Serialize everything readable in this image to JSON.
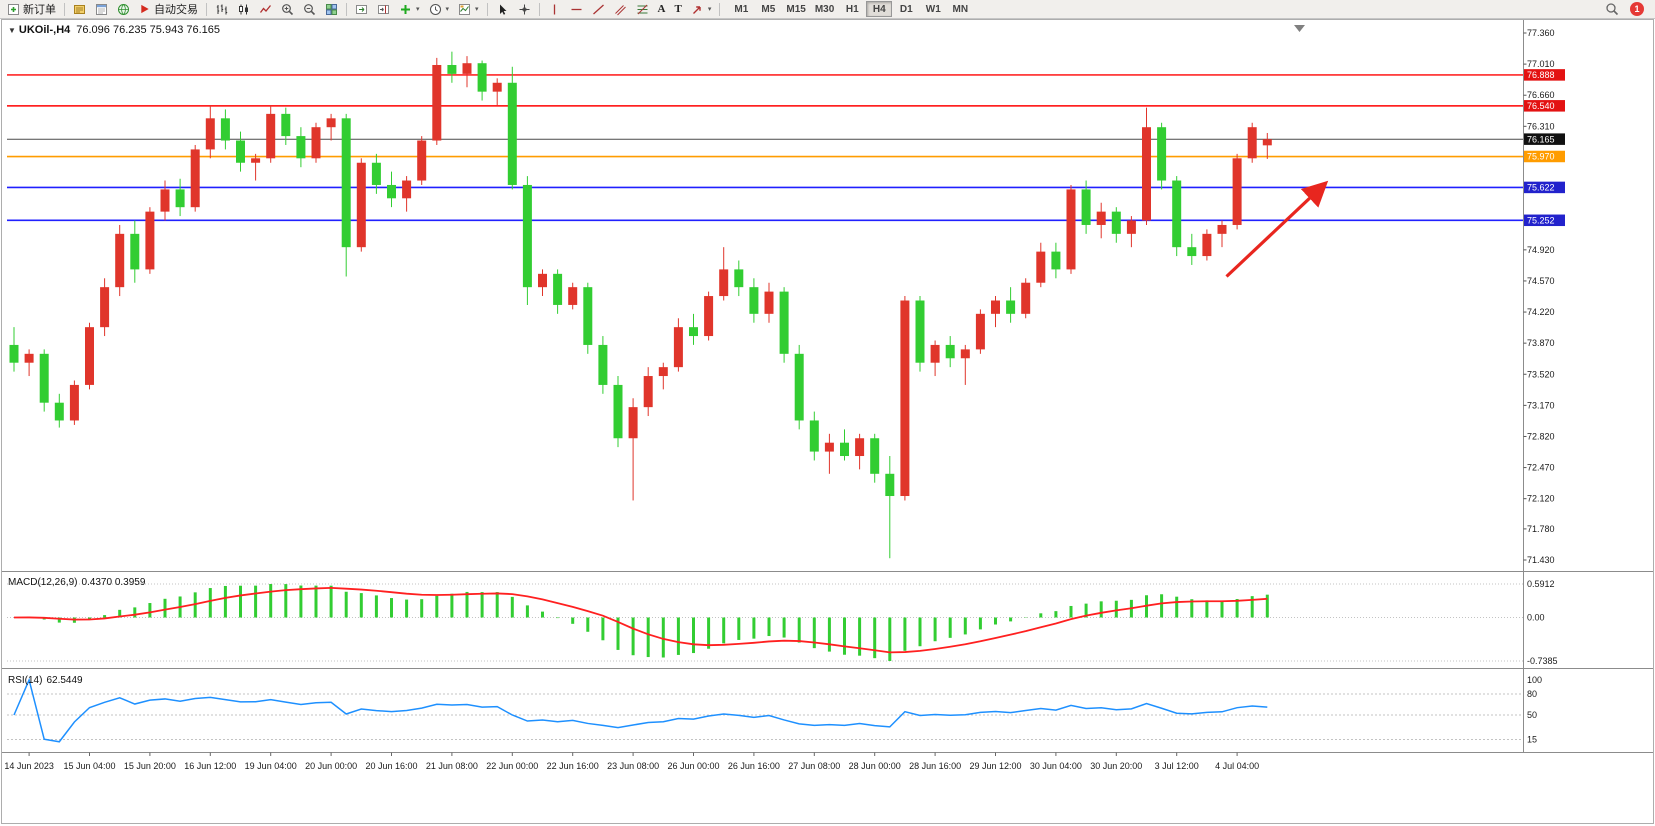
{
  "icons": {
    "title_marker": "▼",
    "caret": "▾",
    "text_tool": "A",
    "label_tool": "T"
  },
  "toolbar": {
    "new_order_label": "新订单",
    "auto_trading_label": "自动交易",
    "timeframes": [
      "M1",
      "M5",
      "M15",
      "M30",
      "H1",
      "H4",
      "D1",
      "W1",
      "MN"
    ],
    "active_timeframe": "H4",
    "notification_badge": "1"
  },
  "chart": {
    "symbol_title": "UKOil-,H4",
    "ohlc": "76.096 76.235 75.943 76.165",
    "price_axis_ticks": [
      "77.360",
      "77.010",
      "76.660",
      "76.310",
      "74.920",
      "74.570",
      "74.220",
      "73.870",
      "73.520",
      "73.170",
      "72.820",
      "72.470",
      "72.120",
      "71.780",
      "71.430"
    ],
    "price_badges": [
      {
        "value": "76.888",
        "price": 76.888,
        "color": "#e31212"
      },
      {
        "value": "76.540",
        "price": 76.54,
        "color": "#e31212"
      },
      {
        "value": "76.165",
        "price": 76.165,
        "color": "#111111"
      },
      {
        "value": "75.970",
        "price": 75.97,
        "color": "#ff9c00"
      },
      {
        "value": "75.622",
        "price": 75.622,
        "color": "#2222cc"
      },
      {
        "value": "75.252",
        "price": 75.252,
        "color": "#2222cc"
      }
    ],
    "hlines": [
      {
        "price": 76.888,
        "color": "#ff0000",
        "width": 1.4
      },
      {
        "price": 76.54,
        "color": "#ff0000",
        "width": 1.4
      },
      {
        "price": 75.97,
        "color": "#ff9c00",
        "width": 1.6
      },
      {
        "price": 75.622,
        "color": "#2020ff",
        "width": 1.6
      },
      {
        "price": 75.252,
        "color": "#2020ff",
        "width": 1.6
      }
    ],
    "bid_line": {
      "price": 76.165,
      "color": "#4a4a4a"
    },
    "arrow": {
      "x1_bar": 80.3,
      "y1_price": 74.62,
      "x2_bar": 86.8,
      "y2_price": 75.66,
      "color": "#e8261f"
    },
    "macd": {
      "label": "MACD(12,26,9)",
      "values": "0.4370 0.3959",
      "axis_labels": [
        "0.5912",
        "0.00",
        "-0.7385"
      ],
      "hist_color": "#32cd32",
      "signal_color": "#ff2020"
    },
    "rsi": {
      "label": "RSI(14)",
      "value": "62.5449",
      "axis_labels": [
        {
          "label": "100",
          "value": 100
        },
        {
          "label": "80",
          "value": 80
        },
        {
          "label": "50",
          "value": 50
        },
        {
          "label": "15",
          "value": 15
        }
      ],
      "levels": [
        80,
        50,
        15
      ],
      "line_color": "#1e90ff"
    },
    "time_axis": [
      {
        "bar": 1,
        "label": "14 Jun 2023"
      },
      {
        "bar": 5,
        "label": "15 Jun 04:00"
      },
      {
        "bar": 9,
        "label": "15 Jun 20:00"
      },
      {
        "bar": 13,
        "label": "16 Jun 12:00"
      },
      {
        "bar": 17,
        "label": "19 Jun 04:00"
      },
      {
        "bar": 21,
        "label": "20 Jun 00:00"
      },
      {
        "bar": 25,
        "label": "20 Jun 16:00"
      },
      {
        "bar": 29,
        "label": "21 Jun 08:00"
      },
      {
        "bar": 33,
        "label": "22 Jun 00:00"
      },
      {
        "bar": 37,
        "label": "22 Jun 16:00"
      },
      {
        "bar": 41,
        "label": "23 Jun 08:00"
      },
      {
        "bar": 45,
        "label": "26 Jun 00:00"
      },
      {
        "bar": 49,
        "label": "26 Jun 16:00"
      },
      {
        "bar": 53,
        "label": "27 Jun 08:00"
      },
      {
        "bar": 57,
        "label": "28 Jun 00:00"
      },
      {
        "bar": 61,
        "label": "28 Jun 16:00"
      },
      {
        "bar": 65,
        "label": "29 Jun 12:00"
      },
      {
        "bar": 69,
        "label": "30 Jun 04:00"
      },
      {
        "bar": 73,
        "label": "30 Jun 20:00"
      },
      {
        "bar": 77,
        "label": "3 Jul 12:00"
      },
      {
        "bar": 81,
        "label": "4 Jul 04:00"
      }
    ]
  },
  "chart_data": {
    "type": "candlestick",
    "symbol": "UKOil-",
    "timeframe": "H4",
    "title": "UKOil-,H4 76.096 76.235 75.943 76.165",
    "current_bar": {
      "open": 76.096,
      "high": 76.235,
      "low": 75.943,
      "close": 76.165
    },
    "up_color": "#e0352b",
    "down_color": "#32cd32",
    "price_range": [
      71.43,
      77.36
    ],
    "indicators": [
      {
        "name": "MACD",
        "params": [
          12,
          26,
          9
        ],
        "current_values": [
          0.437,
          0.3959
        ]
      },
      {
        "name": "RSI",
        "params": [
          14
        ],
        "current_value": 62.5449
      }
    ],
    "candles": [
      [
        73.85,
        74.05,
        73.55,
        73.65
      ],
      [
        73.65,
        73.8,
        73.5,
        73.75
      ],
      [
        73.75,
        73.8,
        73.1,
        73.2
      ],
      [
        73.2,
        73.3,
        72.92,
        73.0
      ],
      [
        73.0,
        73.45,
        72.95,
        73.4
      ],
      [
        73.4,
        74.1,
        73.35,
        74.05
      ],
      [
        74.05,
        74.6,
        73.95,
        74.5
      ],
      [
        74.5,
        75.2,
        74.4,
        75.1
      ],
      [
        75.1,
        75.25,
        74.55,
        74.7
      ],
      [
        74.7,
        75.4,
        74.65,
        75.35
      ],
      [
        75.35,
        75.7,
        75.25,
        75.6
      ],
      [
        75.6,
        75.72,
        75.3,
        75.4
      ],
      [
        75.4,
        76.1,
        75.35,
        76.05
      ],
      [
        76.05,
        76.55,
        75.95,
        76.4
      ],
      [
        76.4,
        76.5,
        76.05,
        76.15
      ],
      [
        76.15,
        76.25,
        75.8,
        75.9
      ],
      [
        75.9,
        76.0,
        75.7,
        75.95
      ],
      [
        75.95,
        76.55,
        75.9,
        76.45
      ],
      [
        76.45,
        76.52,
        76.1,
        76.2
      ],
      [
        76.2,
        76.3,
        75.85,
        75.95
      ],
      [
        75.95,
        76.35,
        75.9,
        76.3
      ],
      [
        76.3,
        76.45,
        76.15,
        76.4
      ],
      [
        76.4,
        76.45,
        74.62,
        74.95
      ],
      [
        74.95,
        75.95,
        74.9,
        75.9
      ],
      [
        75.9,
        76.0,
        75.55,
        75.65
      ],
      [
        75.65,
        75.8,
        75.4,
        75.5
      ],
      [
        75.5,
        75.75,
        75.35,
        75.7
      ],
      [
        75.7,
        76.2,
        75.65,
        76.15
      ],
      [
        76.15,
        77.08,
        76.1,
        77.0
      ],
      [
        77.0,
        77.15,
        76.8,
        76.9
      ],
      [
        76.9,
        77.1,
        76.75,
        77.02
      ],
      [
        77.02,
        77.05,
        76.6,
        76.7
      ],
      [
        76.7,
        76.85,
        76.55,
        76.8
      ],
      [
        76.8,
        76.98,
        75.6,
        75.65
      ],
      [
        75.65,
        75.75,
        74.3,
        74.5
      ],
      [
        74.5,
        74.7,
        74.4,
        74.65
      ],
      [
        74.65,
        74.7,
        74.2,
        74.3
      ],
      [
        74.3,
        74.55,
        74.25,
        74.5
      ],
      [
        74.5,
        74.55,
        73.75,
        73.85
      ],
      [
        73.85,
        73.95,
        73.3,
        73.4
      ],
      [
        73.4,
        73.5,
        72.7,
        72.8
      ],
      [
        72.8,
        73.25,
        72.1,
        73.15
      ],
      [
        73.15,
        73.6,
        73.05,
        73.5
      ],
      [
        73.5,
        73.65,
        73.35,
        73.6
      ],
      [
        73.6,
        74.15,
        73.55,
        74.05
      ],
      [
        74.05,
        74.2,
        73.85,
        73.95
      ],
      [
        73.95,
        74.45,
        73.9,
        74.4
      ],
      [
        74.4,
        74.95,
        74.35,
        74.7
      ],
      [
        74.7,
        74.8,
        74.4,
        74.5
      ],
      [
        74.5,
        74.6,
        74.1,
        74.2
      ],
      [
        74.2,
        74.55,
        74.1,
        74.45
      ],
      [
        74.45,
        74.5,
        73.65,
        73.75
      ],
      [
        73.75,
        73.85,
        72.9,
        73.0
      ],
      [
        73.0,
        73.1,
        72.55,
        72.65
      ],
      [
        72.65,
        72.85,
        72.4,
        72.75
      ],
      [
        72.75,
        72.9,
        72.55,
        72.6
      ],
      [
        72.6,
        72.85,
        72.45,
        72.8
      ],
      [
        72.8,
        72.85,
        72.3,
        72.4
      ],
      [
        72.4,
        72.6,
        71.45,
        72.15
      ],
      [
        72.15,
        74.4,
        72.1,
        74.35
      ],
      [
        74.35,
        74.4,
        73.55,
        73.65
      ],
      [
        73.65,
        73.9,
        73.5,
        73.85
      ],
      [
        73.85,
        73.95,
        73.6,
        73.7
      ],
      [
        73.7,
        73.85,
        73.4,
        73.8
      ],
      [
        73.8,
        74.25,
        73.75,
        74.2
      ],
      [
        74.2,
        74.4,
        74.05,
        74.35
      ],
      [
        74.35,
        74.5,
        74.1,
        74.2
      ],
      [
        74.2,
        74.6,
        74.15,
        74.55
      ],
      [
        74.55,
        75.0,
        74.5,
        74.9
      ],
      [
        74.9,
        75.0,
        74.6,
        74.7
      ],
      [
        74.7,
        75.65,
        74.65,
        75.6
      ],
      [
        75.6,
        75.7,
        75.1,
        75.2
      ],
      [
        75.2,
        75.45,
        75.05,
        75.35
      ],
      [
        75.35,
        75.4,
        75.0,
        75.1
      ],
      [
        75.1,
        75.3,
        74.95,
        75.25
      ],
      [
        75.25,
        76.52,
        75.2,
        76.3
      ],
      [
        76.3,
        76.35,
        75.6,
        75.7
      ],
      [
        75.7,
        75.75,
        74.85,
        74.95
      ],
      [
        74.95,
        75.1,
        74.75,
        74.85
      ],
      [
        74.85,
        75.15,
        74.8,
        75.1
      ],
      [
        75.1,
        75.25,
        74.95,
        75.2
      ],
      [
        75.2,
        76.0,
        75.15,
        75.95
      ],
      [
        75.95,
        76.35,
        75.9,
        76.3
      ],
      [
        76.096,
        76.235,
        75.943,
        76.165
      ]
    ]
  }
}
